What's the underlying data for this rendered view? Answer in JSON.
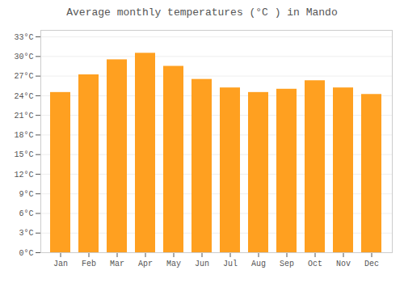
{
  "chart_data": {
    "type": "bar",
    "title": "Average monthly temperatures (°C ) in Mando",
    "categories": [
      "Jan",
      "Feb",
      "Mar",
      "Apr",
      "May",
      "Jun",
      "Jul",
      "Aug",
      "Sep",
      "Oct",
      "Nov",
      "Dec"
    ],
    "values": [
      24.5,
      27.2,
      29.5,
      30.5,
      28.5,
      26.5,
      25.2,
      24.5,
      25.0,
      26.3,
      25.2,
      24.2
    ],
    "color": "#FFA020",
    "ylim": [
      0,
      34
    ],
    "yticks": [
      {
        "value": 0,
        "label": "0°C"
      },
      {
        "value": 3,
        "label": "3°C"
      },
      {
        "value": 6,
        "label": "6°C"
      },
      {
        "value": 9,
        "label": "9°C"
      },
      {
        "value": 12,
        "label": "12°C"
      },
      {
        "value": 15,
        "label": "15°C"
      },
      {
        "value": 18,
        "label": "18°C"
      },
      {
        "value": 21,
        "label": "21°C"
      },
      {
        "value": 24,
        "label": "24°C"
      },
      {
        "value": 27,
        "label": "27°C"
      },
      {
        "value": 30,
        "label": "30°C"
      },
      {
        "value": 33,
        "label": "33°C"
      }
    ],
    "grid": true
  }
}
